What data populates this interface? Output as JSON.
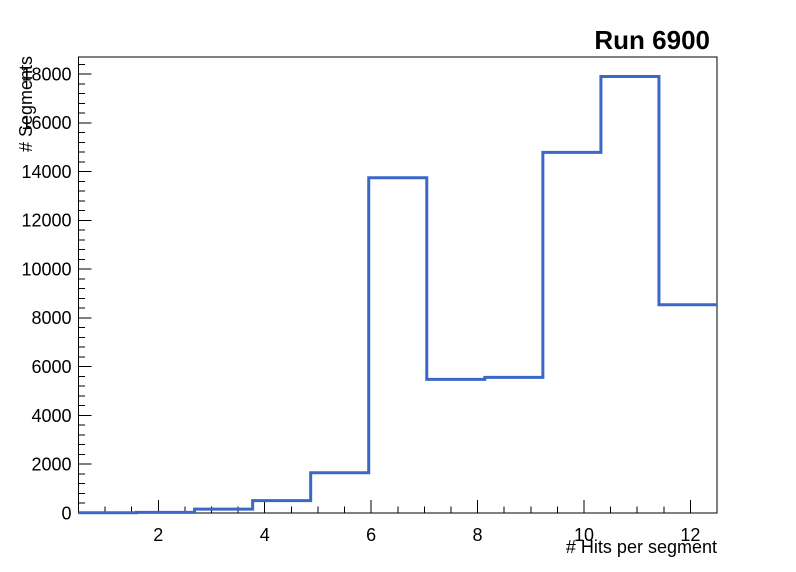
{
  "window": {
    "background_color": "#ffffff"
  },
  "chart_data": {
    "type": "bar",
    "subtype": "step-outline-histogram",
    "title": "Run 6900",
    "xlabel": "# Hits per segment",
    "ylabel": "# Segments",
    "xlim": [
      0.5,
      12.5
    ],
    "ylim": [
      0,
      18700
    ],
    "grid": false,
    "bin_edges": [
      0.5,
      1.5909,
      2.6818,
      3.7727,
      4.8636,
      5.9545,
      7.0455,
      8.1364,
      9.2273,
      10.3182,
      11.4091,
      12.5
    ],
    "counts": [
      10,
      25,
      160,
      510,
      1650,
      13750,
      5480,
      5560,
      14790,
      17900,
      8540
    ],
    "x_ticks": {
      "major": [
        2,
        4,
        6,
        8,
        10,
        12
      ],
      "minor_step": 0.5,
      "major_labels": [
        "2",
        "4",
        "6",
        "8",
        "10",
        "12"
      ]
    },
    "y_ticks": {
      "major": [
        0,
        2000,
        4000,
        6000,
        8000,
        10000,
        12000,
        14000,
        16000,
        18000
      ],
      "minor_step": 400,
      "major_labels": [
        "0",
        "2000",
        "4000",
        "6000",
        "8000",
        "10000",
        "12000",
        "14000",
        "16000",
        "18000"
      ]
    },
    "line_color": "#3a67c8",
    "axis_color": "#000000",
    "label_color": "#000000"
  }
}
